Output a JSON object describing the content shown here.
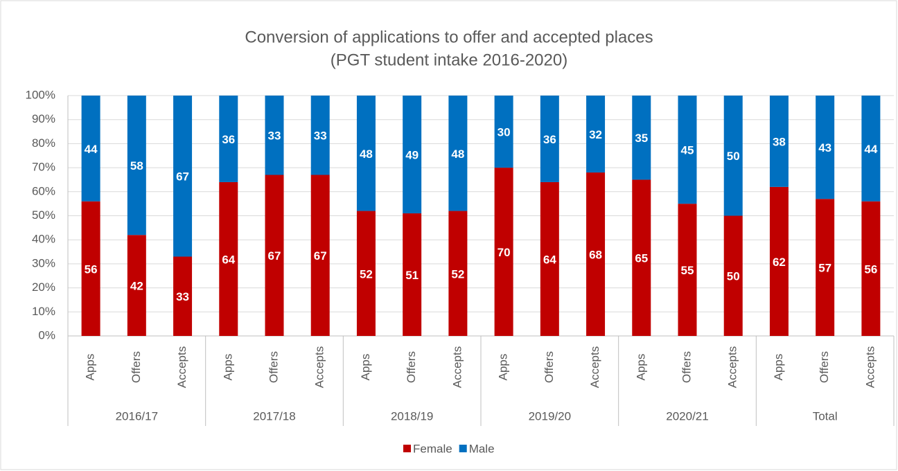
{
  "chart_data": {
    "type": "stacked_bar",
    "title": "Conversion of applications to offer and accepted places",
    "subtitle": "(PGT student intake 2016-2020)",
    "categories": [
      "Apps",
      "Offers",
      "Accepts",
      "Apps",
      "Offers",
      "Accepts",
      "Apps",
      "Offers",
      "Accepts",
      "Apps",
      "Offers",
      "Accepts",
      "Apps",
      "Offers",
      "Accepts",
      "Apps",
      "Offers",
      "Accepts"
    ],
    "groups": [
      "2016/17",
      "2017/18",
      "2018/19",
      "2019/20",
      "2020/21",
      "Total"
    ],
    "series": [
      {
        "name": "Female",
        "color": "#c00000",
        "values": [
          56,
          42,
          33,
          64,
          67,
          67,
          52,
          51,
          52,
          70,
          64,
          68,
          65,
          55,
          50,
          62,
          57,
          56
        ]
      },
      {
        "name": "Male",
        "color": "#0070c0",
        "values": [
          44,
          58,
          67,
          36,
          33,
          33,
          48,
          49,
          48,
          30,
          36,
          32,
          35,
          45,
          50,
          38,
          43,
          44
        ]
      }
    ],
    "ylim": [
      0,
      100
    ],
    "yticks": [
      {
        "value": 0,
        "label": "0%"
      },
      {
        "value": 10,
        "label": "10%"
      },
      {
        "value": 20,
        "label": "20%"
      },
      {
        "value": 30,
        "label": "30%"
      },
      {
        "value": 40,
        "label": "40%"
      },
      {
        "value": 50,
        "label": "50%"
      },
      {
        "value": 60,
        "label": "60%"
      },
      {
        "value": 70,
        "label": "70%"
      },
      {
        "value": 80,
        "label": "80%"
      },
      {
        "value": 90,
        "label": "90%"
      },
      {
        "value": 100,
        "label": "100%"
      }
    ],
    "grid": true,
    "legend": "bottom"
  }
}
